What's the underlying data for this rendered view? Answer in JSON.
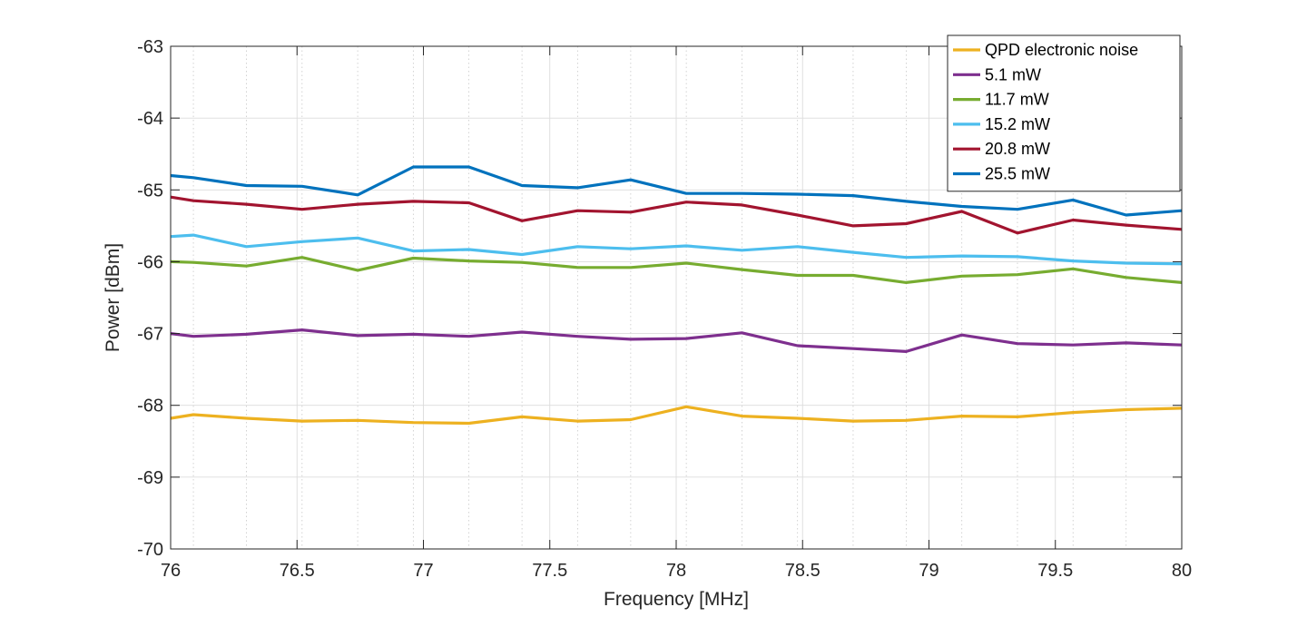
{
  "chart_data": {
    "type": "line",
    "title": "",
    "xlabel": "Frequency [MHz]",
    "ylabel": "Power [dBm]",
    "xlim": [
      76,
      80
    ],
    "ylim": [
      -70,
      -63
    ],
    "xticks": [
      76,
      76.5,
      77,
      77.5,
      78,
      78.5,
      79,
      79.5,
      80
    ],
    "xtick_labels": [
      "76",
      "76.5",
      "77",
      "77.5",
      "78",
      "78.5",
      "79",
      "79.5",
      "80"
    ],
    "yticks": [
      -70,
      -69,
      -68,
      -67,
      -66,
      -65,
      -64,
      -63
    ],
    "ytick_labels": [
      "-70",
      "-69",
      "-68",
      "-67",
      "-66",
      "-65",
      "-64",
      "-63"
    ],
    "grid": true,
    "minor_grid_x": true,
    "legend_position": "top-right",
    "x": [
      76.0,
      76.09,
      76.3,
      76.52,
      76.74,
      76.96,
      77.18,
      77.39,
      77.61,
      77.82,
      78.04,
      78.26,
      78.48,
      78.7,
      78.91,
      79.13,
      79.35,
      79.57,
      79.78,
      80.0
    ],
    "series": [
      {
        "name": "QPD electronic noise",
        "color": "#EDB120",
        "values": [
          -68.18,
          -68.13,
          -68.18,
          -68.22,
          -68.21,
          -68.24,
          -68.25,
          -68.16,
          -68.22,
          -68.2,
          -68.02,
          -68.15,
          -68.18,
          -68.22,
          -68.21,
          -68.15,
          -68.16,
          -68.1,
          -68.06,
          -68.04
        ]
      },
      {
        "name": "5.1 mW",
        "color": "#7E2F8E",
        "values": [
          -67.0,
          -67.04,
          -67.01,
          -66.95,
          -67.03,
          -67.01,
          -67.04,
          -66.98,
          -67.04,
          -67.08,
          -67.07,
          -66.99,
          -67.17,
          -67.21,
          -67.25,
          -67.02,
          -67.14,
          -67.16,
          -67.13,
          -67.16
        ]
      },
      {
        "name": "11.7 mW",
        "color": "#77AC30",
        "values": [
          -66.0,
          -66.01,
          -66.06,
          -65.94,
          -66.12,
          -65.95,
          -65.99,
          -66.01,
          -66.08,
          -66.08,
          -66.02,
          -66.11,
          -66.19,
          -66.19,
          -66.29,
          -66.2,
          -66.18,
          -66.1,
          -66.22,
          -66.29
        ]
      },
      {
        "name": "15.2 mW",
        "color": "#4DBEEE",
        "values": [
          -65.65,
          -65.63,
          -65.79,
          -65.72,
          -65.67,
          -65.85,
          -65.83,
          -65.9,
          -65.79,
          -65.82,
          -65.78,
          -65.84,
          -65.79,
          -65.87,
          -65.94,
          -65.92,
          -65.93,
          -65.99,
          -66.02,
          -66.03
        ]
      },
      {
        "name": "20.8 mW",
        "color": "#A2142F",
        "values": [
          -65.1,
          -65.15,
          -65.2,
          -65.27,
          -65.2,
          -65.16,
          -65.18,
          -65.43,
          -65.29,
          -65.31,
          -65.17,
          -65.21,
          -65.35,
          -65.5,
          -65.47,
          -65.3,
          -65.6,
          -65.42,
          -65.49,
          -65.55
        ]
      },
      {
        "name": "25.5 mW",
        "color": "#0072BD",
        "values": [
          -64.8,
          -64.83,
          -64.94,
          -64.95,
          -65.07,
          -64.68,
          -64.68,
          -64.94,
          -64.97,
          -64.86,
          -65.05,
          -65.05,
          -65.06,
          -65.08,
          -65.16,
          -65.23,
          -65.27,
          -65.14,
          -65.35,
          -65.29
        ]
      }
    ]
  }
}
